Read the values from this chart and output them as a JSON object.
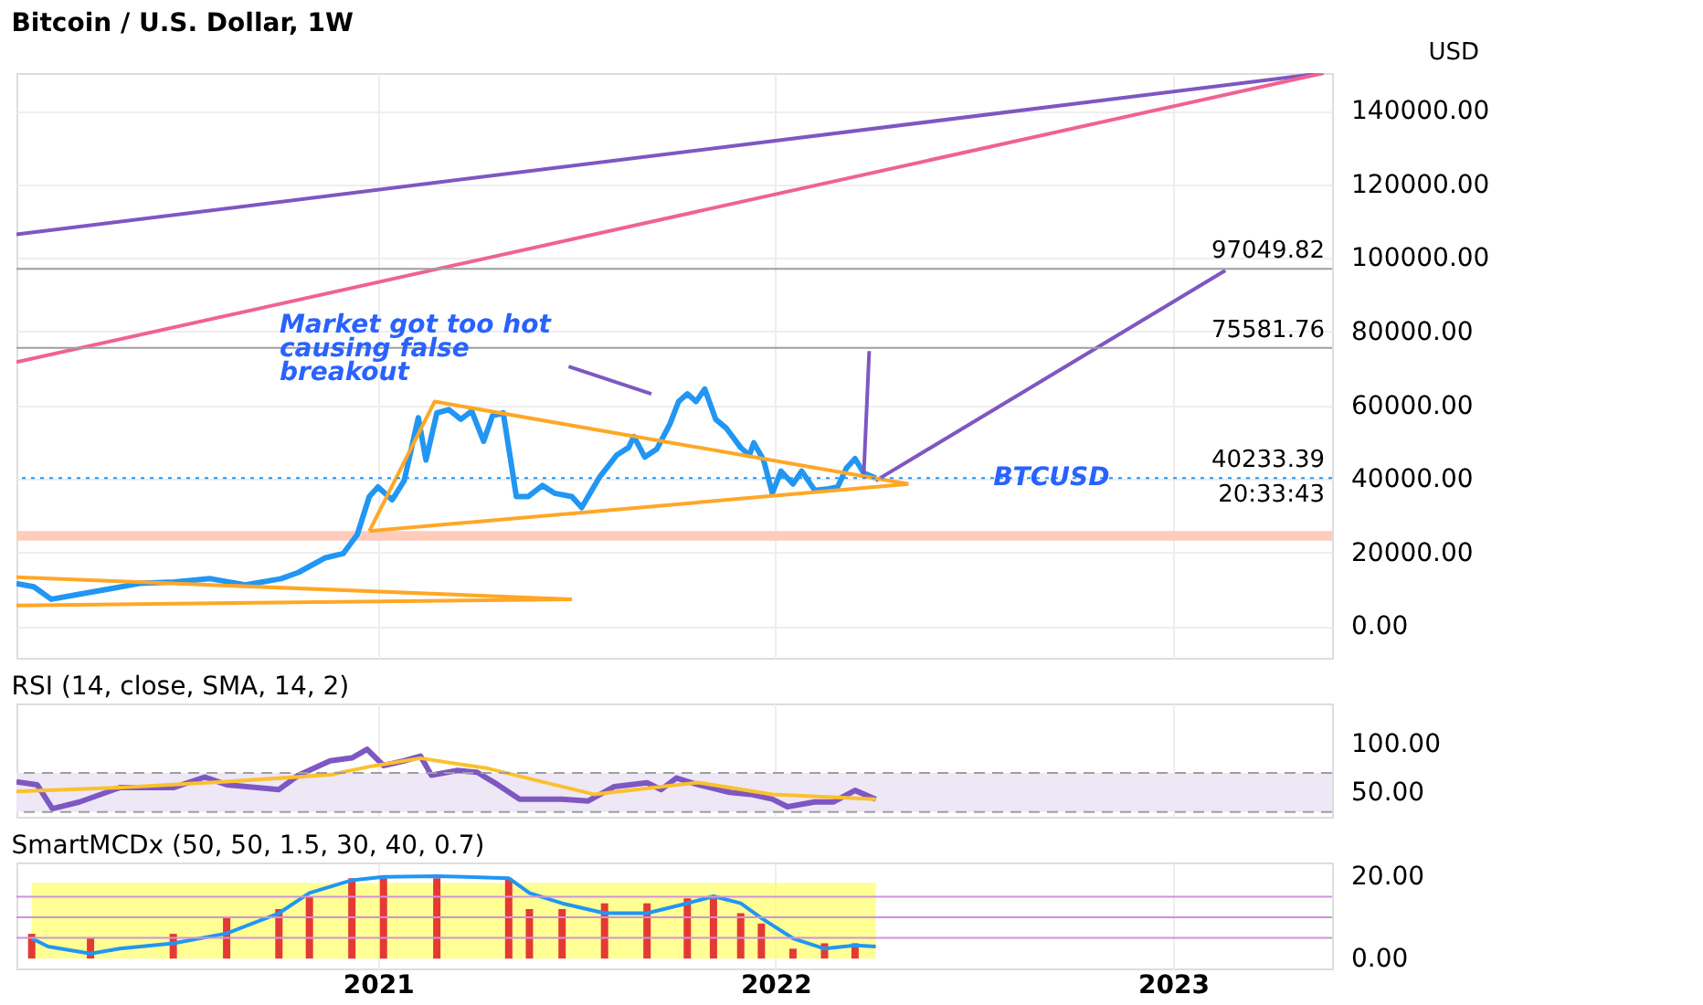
{
  "chart_data": [
    {
      "type": "line",
      "title": "Bitcoin / U.S. Dollar, 1W",
      "ylabel": "USD",
      "xlim": [
        "2020-02-04",
        "2023-05-27"
      ],
      "xticks": [
        {
          "value": "2021-01-01",
          "label": null
        },
        {
          "value": "2022-01-01",
          "label": null
        },
        {
          "value": "2023-01-01",
          "label": null
        }
      ],
      "ylim": [
        -8600,
        150200
      ],
      "yticks": [
        {
          "value": 0,
          "label": "0.00"
        },
        {
          "value": 20000,
          "label": "20000.00"
        },
        {
          "value": 40000,
          "label": "40000.00"
        },
        {
          "value": 60000,
          "label": "60000.00"
        },
        {
          "value": 80000,
          "label": "80000.00"
        },
        {
          "value": 100000,
          "label": "100000.00"
        },
        {
          "value": 120000,
          "label": "120000.00"
        },
        {
          "value": 140000,
          "label": "140000.00"
        }
      ],
      "tick_labels": "y",
      "grid": true,
      "series": [
        {
          "color": "#2196f3",
          "x": [
            "2020-02-04",
            "2020-02-20",
            "2020-03-07",
            "2020-03-31",
            "2020-04-25",
            "2020-05-27",
            "2020-06-28",
            "2020-07-31",
            "2020-09-01",
            "2020-10-04",
            "2020-10-20",
            "2020-11-13",
            "2020-11-30",
            "2020-12-13",
            "2020-12-24",
            "2021-01-01",
            "2021-01-14",
            "2021-01-25",
            "2021-02-07",
            "2021-02-14",
            "2021-02-24",
            "2021-03-07",
            "2021-03-18",
            "2021-03-28",
            "2021-04-08",
            "2021-04-16",
            "2021-04-26",
            "2021-05-08",
            "2021-05-19",
            "2021-06-01",
            "2021-06-12",
            "2021-06-28",
            "2021-07-07",
            "2021-07-23",
            "2021-08-08",
            "2021-08-19",
            "2021-08-24",
            "2021-09-03",
            "2021-09-14",
            "2021-09-26",
            "2021-10-04",
            "2021-10-12",
            "2021-10-20",
            "2021-10-28",
            "2021-11-07",
            "2021-11-17",
            "2021-11-30",
            "2021-12-08",
            "2021-12-12",
            "2021-12-21",
            "2021-12-29",
            "2022-01-06",
            "2022-01-17",
            "2022-01-25",
            "2022-02-06",
            "2022-02-19",
            "2022-02-27",
            "2022-03-07",
            "2022-03-15",
            "2022-03-23",
            "2022-04-03"
          ],
          "values": [
            11600,
            10700,
            7300,
            8600,
            9900,
            11600,
            12000,
            12900,
            11200,
            12900,
            14600,
            18500,
            19700,
            24900,
            35200,
            37800,
            34300,
            39500,
            56600,
            45100,
            57900,
            58800,
            56200,
            58400,
            50200,
            57100,
            57900,
            35200,
            35200,
            38200,
            36100,
            35200,
            32200,
            40300,
            46400,
            48500,
            51500,
            45900,
            48100,
            54900,
            61000,
            63100,
            61000,
            64400,
            56200,
            53700,
            48500,
            46400,
            49800,
            45100,
            36100,
            42100,
            38600,
            42100,
            36900,
            37300,
            37800,
            42900,
            45500,
            41600,
            40233.39
          ]
        },
        {
          "color": "#7e57c2",
          "x": [
            "2020-02-04",
            "2023-05-19"
          ],
          "values": [
            106400,
            150200
          ]
        },
        {
          "color": "#f06292",
          "x": [
            "2020-02-04",
            "2023-05-19"
          ],
          "values": [
            71700,
            150200
          ]
        },
        {
          "color": "#7e57c2",
          "x": [
            "2022-03-23",
            "2022-03-28"
          ],
          "values": [
            41200,
            74700
          ]
        },
        {
          "color": "#7e57c2",
          "x": [
            "2022-04-03",
            "2023-02-18"
          ],
          "values": [
            39500,
            96600
          ]
        },
        {
          "color": "#7e57c2",
          "x": [
            "2021-06-25",
            "2021-09-09"
          ],
          "values": [
            70500,
            63100
          ]
        },
        {
          "color": "#ffa726",
          "x": [
            "2020-12-24",
            "2021-02-22",
            "2022-05-03"
          ],
          "values": [
            25800,
            61000,
            38600
          ]
        },
        {
          "color": "#ffa726",
          "x": [
            "2020-12-24",
            "2022-05-03"
          ],
          "values": [
            25800,
            38600
          ]
        },
        {
          "color": "#ffa726",
          "x": [
            "2020-02-04",
            "2021-06-28"
          ],
          "values": [
            13300,
            7300
          ]
        },
        {
          "color": "#ffa726",
          "x": [
            "2020-02-04",
            "2021-06-28"
          ],
          "values": [
            5600,
            7300
          ]
        }
      ],
      "ref_lines": [
        {
          "axis": "y",
          "value": 97049.82,
          "label": "97049.82",
          "color": "#9e9e9e",
          "line_style": "solid"
        },
        {
          "axis": "y",
          "value": 75581.76,
          "label": "75581.76",
          "color": "#9e9e9e",
          "line_style": "solid"
        },
        {
          "axis": "y",
          "value": 40233.39,
          "label": "40233.39",
          "color": "#2196f3",
          "line_style": "dotted"
        }
      ],
      "bands": [
        {
          "axis": "y",
          "from": 23200,
          "to": 25800,
          "color": "#ffccbc"
        }
      ],
      "annotations": [
        "Market got too hot\ncausing false\nbreakout",
        {
          "text": "BTCUSD",
          "x": "2022-07-20",
          "y": 40233.39
        },
        "20:33:43"
      ]
    },
    {
      "type": "line",
      "title": "RSI (14, close, SMA, 14, 2)",
      "xlim": [
        "2020-02-04",
        "2023-05-27"
      ],
      "xticks": [
        {
          "value": "2021-01-01",
          "label": null
        },
        {
          "value": "2022-01-01",
          "label": null
        },
        {
          "value": "2023-01-01",
          "label": null
        }
      ],
      "ylim": [
        25,
        141
      ],
      "yticks": [
        {
          "value": 50,
          "label": "50.00"
        },
        {
          "value": 100,
          "label": "100.00"
        }
      ],
      "tick_labels": "y",
      "grid": "x",
      "series": [
        {
          "color": "#7e57c2",
          "x": [
            "2020-02-04",
            "2020-02-23",
            "2020-03-08",
            "2020-04-02",
            "2020-05-09",
            "2020-06-27",
            "2020-07-26",
            "2020-08-15",
            "2020-10-02",
            "2020-10-20",
            "2020-11-18",
            "2020-12-08",
            "2020-12-22",
            "2021-01-06",
            "2021-01-25",
            "2021-02-09",
            "2021-02-19",
            "2021-03-15",
            "2021-04-02",
            "2021-04-21",
            "2021-05-11",
            "2021-06-19",
            "2021-07-13",
            "2021-08-06",
            "2021-09-05",
            "2021-09-18",
            "2021-10-02",
            "2021-10-22",
            "2021-11-20",
            "2021-12-09",
            "2021-12-29",
            "2022-01-12",
            "2022-02-06",
            "2022-02-23",
            "2022-03-15",
            "2022-04-03"
          ],
          "values": [
            60.8,
            57.8,
            33.3,
            40.2,
            54.9,
            54.9,
            65.7,
            57.8,
            52.9,
            67.6,
            82.3,
            85.3,
            94.1,
            77.4,
            82.3,
            87.2,
            67.6,
            72.5,
            70.6,
            57.8,
            43.1,
            43.1,
            41.2,
            55.9,
            59.8,
            52.9,
            64.7,
            57.8,
            50,
            48,
            43.1,
            35.3,
            40.2,
            40.2,
            52,
            43.1
          ]
        },
        {
          "color": "#fbc02d",
          "x": [
            "2020-02-04",
            "2020-05-09",
            "2020-08-15",
            "2020-11-18",
            "2020-12-27",
            "2021-02-09",
            "2021-04-12",
            "2021-07-18",
            "2021-10-22",
            "2021-12-29",
            "2022-04-03"
          ],
          "values": [
            51,
            55,
            61,
            68,
            77,
            85,
            74.5,
            48,
            60,
            48,
            43
          ]
        }
      ],
      "ref_lines": [
        {
          "axis": "y",
          "value": 70,
          "color": "#9e9e9e",
          "line_style": "dashed"
        },
        {
          "axis": "y",
          "value": 30,
          "color": "#9e9e9e",
          "line_style": "dashed"
        }
      ],
      "bands": [
        {
          "axis": "y",
          "from": 30,
          "to": 70,
          "color": "#ede7f6"
        }
      ]
    },
    {
      "type": "line",
      "title": "SmartMCDx (50, 50, 1.5, 30, 40, 0.7)",
      "xlim": [
        "2020-02-04",
        "2023-05-27"
      ],
      "xticks": [
        {
          "value": "2021-01-01",
          "label": "2021"
        },
        {
          "value": "2022-01-01",
          "label": "2022"
        },
        {
          "value": "2023-01-01",
          "label": "2023"
        }
      ],
      "ylim": [
        -2.4,
        23.3
      ],
      "yticks": [
        {
          "value": 0,
          "label": "0.00"
        },
        {
          "value": 20,
          "label": "20.00"
        }
      ],
      "grid": "x",
      "series": [
        {
          "type": "area",
          "color": "#ffff66",
          "x": [
            "2020-02-18",
            "2022-04-03"
          ],
          "values": [
            18.3,
            18.3
          ]
        },
        {
          "type": "bar",
          "color": "#e53935",
          "x": [
            "2020-02-18",
            "2020-04-12",
            "2020-06-27",
            "2020-08-15",
            "2020-10-02",
            "2020-10-30",
            "2020-12-08",
            "2021-01-06",
            "2021-02-24",
            "2021-05-01",
            "2021-05-20",
            "2021-06-19",
            "2021-07-28",
            "2021-09-05",
            "2021-10-12",
            "2021-11-05",
            "2021-11-30",
            "2021-12-19",
            "2022-01-17",
            "2022-02-15",
            "2022-03-15"
          ],
          "values": [
            6,
            4.9,
            6,
            9.8,
            12,
            15,
            19.5,
            19.5,
            19.5,
            19.5,
            12,
            12,
            13.4,
            13.4,
            14.6,
            14.6,
            11,
            8.5,
            2.4,
            3.7,
            3.7
          ]
        },
        {
          "color": "#2196f3",
          "x": [
            "2020-02-18",
            "2020-03-04",
            "2020-04-12",
            "2020-05-09",
            "2020-06-27",
            "2020-08-15",
            "2020-10-02",
            "2020-10-30",
            "2020-12-08",
            "2021-01-06",
            "2021-02-24",
            "2021-05-01",
            "2021-05-20",
            "2021-06-19",
            "2021-07-28",
            "2021-09-05",
            "2021-10-12",
            "2021-11-05",
            "2021-11-30",
            "2021-12-19",
            "2022-01-17",
            "2022-02-15",
            "2022-03-15",
            "2022-04-03"
          ],
          "values": [
            4.9,
            2.9,
            1.2,
            2.4,
            3.7,
            6.1,
            11,
            15.9,
            19,
            19.8,
            20,
            19.5,
            15.9,
            13.4,
            11,
            11,
            13.4,
            15.1,
            13.4,
            9.8,
            4.9,
            2.4,
            3.2,
            2.9
          ]
        }
      ],
      "ref_lines": [
        {
          "axis": "y",
          "value": 15,
          "color": "#ce93d8",
          "line_style": "solid"
        },
        {
          "axis": "y",
          "value": 10,
          "color": "#ce93d8",
          "line_style": "solid"
        },
        {
          "axis": "y",
          "value": 5,
          "color": "#ce93d8",
          "line_style": "solid"
        }
      ]
    }
  ]
}
